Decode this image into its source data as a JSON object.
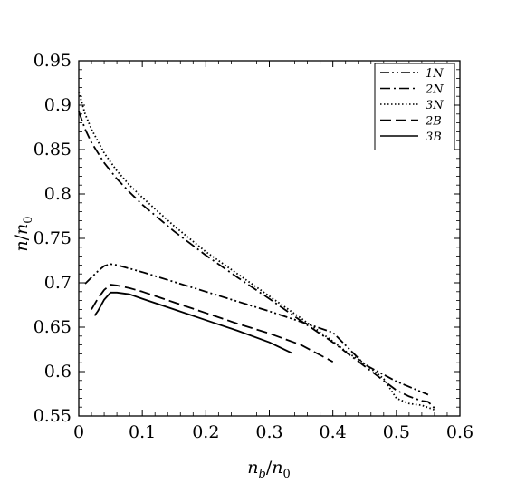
{
  "chart_data": {
    "type": "line",
    "title": "",
    "xlabel": "n_b/n_0",
    "ylabel": "n/n_0",
    "xlim": [
      0,
      0.6
    ],
    "ylim": [
      0.55,
      0.95
    ],
    "x_ticks": [
      "0",
      "0.1",
      "0.2",
      "0.3",
      "0.4",
      "0.5",
      "0.6"
    ],
    "y_ticks": [
      "0.55",
      "0.6",
      "0.65",
      "0.7",
      "0.75",
      "0.8",
      "0.85",
      "0.9",
      "0.95"
    ],
    "grid": false,
    "legend_position": "top-right",
    "series": [
      {
        "name": "1N",
        "dash": "dash-dot-dot",
        "x": [
          0.01,
          0.02,
          0.03,
          0.04,
          0.05,
          0.06,
          0.08,
          0.1,
          0.15,
          0.2,
          0.25,
          0.3,
          0.35,
          0.4,
          0.45,
          0.5,
          0.55
        ],
        "y": [
          0.699,
          0.706,
          0.713,
          0.719,
          0.721,
          0.72,
          0.716,
          0.712,
          0.701,
          0.69,
          0.679,
          0.668,
          0.656,
          0.644,
          0.608,
          0.589,
          0.574
        ]
      },
      {
        "name": "2N",
        "dash": "dash-dot",
        "x": [
          0.0,
          0.01,
          0.02,
          0.04,
          0.06,
          0.08,
          0.1,
          0.15,
          0.2,
          0.25,
          0.3,
          0.35,
          0.4,
          0.45,
          0.5,
          0.52,
          0.54,
          0.55,
          0.56
        ],
        "y": [
          0.893,
          0.873,
          0.858,
          0.835,
          0.817,
          0.802,
          0.788,
          0.758,
          0.731,
          0.706,
          0.682,
          0.657,
          0.633,
          0.606,
          0.579,
          0.572,
          0.567,
          0.566,
          0.559
        ]
      },
      {
        "name": "3N",
        "dash": "dotted",
        "x": [
          0.0,
          0.01,
          0.02,
          0.04,
          0.06,
          0.08,
          0.1,
          0.15,
          0.2,
          0.25,
          0.3,
          0.35,
          0.4,
          0.42,
          0.45,
          0.48,
          0.5,
          0.52,
          0.54,
          0.56
        ],
        "y": [
          0.915,
          0.89,
          0.873,
          0.846,
          0.826,
          0.81,
          0.796,
          0.764,
          0.735,
          0.71,
          0.685,
          0.66,
          0.634,
          0.623,
          0.609,
          0.592,
          0.57,
          0.564,
          0.562,
          0.557
        ]
      },
      {
        "name": "2B",
        "dash": "dashed",
        "x": [
          0.02,
          0.03,
          0.04,
          0.05,
          0.06,
          0.08,
          0.1,
          0.15,
          0.2,
          0.25,
          0.3,
          0.35,
          0.4
        ],
        "y": [
          0.67,
          0.682,
          0.692,
          0.698,
          0.697,
          0.694,
          0.69,
          0.678,
          0.666,
          0.654,
          0.643,
          0.63,
          0.611
        ]
      },
      {
        "name": "3B",
        "dash": "solid",
        "x": [
          0.025,
          0.03,
          0.04,
          0.05,
          0.06,
          0.08,
          0.1,
          0.15,
          0.2,
          0.25,
          0.3,
          0.335
        ],
        "y": [
          0.663,
          0.668,
          0.681,
          0.689,
          0.689,
          0.687,
          0.682,
          0.67,
          0.658,
          0.646,
          0.633,
          0.621
        ]
      }
    ]
  }
}
